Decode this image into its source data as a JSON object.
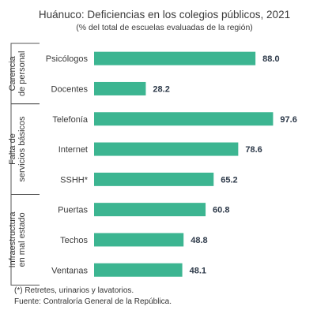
{
  "chart_data": {
    "type": "bar",
    "orientation": "horizontal",
    "title": "Huánuco: Deficiencias en los colegios públicos, 2021",
    "subtitle": "(% del total de escuelas evaluadas de la región)",
    "groups": [
      {
        "label": "Carencia de personal",
        "categories": [
          "Psicólogos",
          "Docentes"
        ]
      },
      {
        "label": "Falta de servicios básicos",
        "categories": [
          "Telefonía",
          "Internet",
          "SSHH*"
        ]
      },
      {
        "label": "Infraestructura en mal estado",
        "categories": [
          "Puertas",
          "Techos",
          "Ventanas"
        ]
      }
    ],
    "categories": [
      "Psicólogos",
      "Docentes",
      "Telefonía",
      "Internet",
      "SSHH*",
      "Puertas",
      "Techos",
      "Ventanas"
    ],
    "values": [
      88.0,
      28.2,
      97.6,
      78.6,
      65.2,
      60.8,
      48.8,
      48.1
    ],
    "value_labels": [
      "88.0",
      "28.2",
      "97.6",
      "78.6",
      "65.2",
      "60.8",
      "48.8",
      "48.1"
    ],
    "xlim": [
      0,
      100
    ],
    "grid": false,
    "legend": "none",
    "colors": {
      "bar": "#3cb591",
      "text": "#3a3a3a",
      "value_label": "#2e3a4a",
      "divider": "#555555"
    }
  },
  "notes": {
    "footnote": "(*) Retretes, urinarios y lavatorios.",
    "source": "Fuente: Contraloría General de la República."
  }
}
